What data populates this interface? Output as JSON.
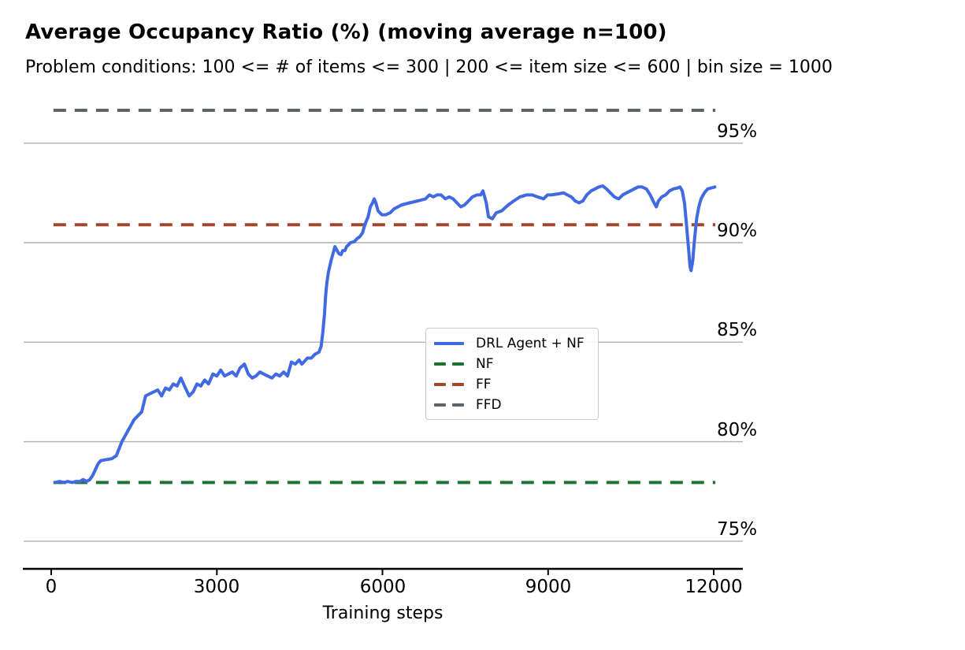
{
  "chart_data": {
    "type": "line",
    "title": "Average Occupancy Ratio (%) (moving average n=100)",
    "subtitle": "Problem conditions: 100 <= # of items <= 300 | 200 <= item size <= 600 | bin size = 1000",
    "xlabel": "Training steps",
    "ylabel": "",
    "grid": "horizontal",
    "grid_color": "#b0b0b0",
    "axis_color": "#000000",
    "legend_position": "center",
    "xlim": [
      -510,
      12530
    ],
    "ylim": [
      73.6,
      97.7
    ],
    "x_ticks": [
      {
        "label": "0",
        "value": 0
      },
      {
        "label": "3000",
        "value": 3000
      },
      {
        "label": "6000",
        "value": 6000
      },
      {
        "label": "9000",
        "value": 9000
      },
      {
        "label": "12000",
        "value": 12000
      }
    ],
    "y_ticks": [
      {
        "label": "95%",
        "value": 95
      },
      {
        "label": "90%",
        "value": 90
      },
      {
        "label": "85%",
        "value": 85
      },
      {
        "label": "80%",
        "value": 80
      },
      {
        "label": "75%",
        "value": 75
      }
    ],
    "series": [
      {
        "name": "DRL Agent + NF",
        "style": "solid",
        "color": "#4169e1",
        "points": [
          [
            70,
            77.95
          ],
          [
            150,
            78.0
          ],
          [
            230,
            77.95
          ],
          [
            300,
            78.0
          ],
          [
            380,
            77.95
          ],
          [
            450,
            78.0
          ],
          [
            520,
            78.0
          ],
          [
            580,
            78.1
          ],
          [
            640,
            78.0
          ],
          [
            700,
            78.1
          ],
          [
            750,
            78.3
          ],
          [
            800,
            78.6
          ],
          [
            850,
            78.9
          ],
          [
            900,
            79.05
          ],
          [
            1000,
            79.1
          ],
          [
            1100,
            79.15
          ],
          [
            1180,
            79.3
          ],
          [
            1280,
            80.0
          ],
          [
            1360,
            80.4
          ],
          [
            1500,
            81.1
          ],
          [
            1640,
            81.5
          ],
          [
            1710,
            82.3
          ],
          [
            1780,
            82.4
          ],
          [
            1930,
            82.6
          ],
          [
            2000,
            82.3
          ],
          [
            2070,
            82.7
          ],
          [
            2140,
            82.6
          ],
          [
            2210,
            82.9
          ],
          [
            2280,
            82.8
          ],
          [
            2350,
            83.2
          ],
          [
            2430,
            82.7
          ],
          [
            2500,
            82.3
          ],
          [
            2570,
            82.5
          ],
          [
            2640,
            82.9
          ],
          [
            2710,
            82.8
          ],
          [
            2780,
            83.1
          ],
          [
            2850,
            82.9
          ],
          [
            2930,
            83.4
          ],
          [
            3000,
            83.3
          ],
          [
            3070,
            83.6
          ],
          [
            3140,
            83.3
          ],
          [
            3210,
            83.4
          ],
          [
            3280,
            83.5
          ],
          [
            3350,
            83.3
          ],
          [
            3420,
            83.7
          ],
          [
            3500,
            83.9
          ],
          [
            3570,
            83.4
          ],
          [
            3640,
            83.2
          ],
          [
            3710,
            83.3
          ],
          [
            3780,
            83.5
          ],
          [
            3850,
            83.4
          ],
          [
            3920,
            83.3
          ],
          [
            4000,
            83.2
          ],
          [
            4070,
            83.4
          ],
          [
            4140,
            83.3
          ],
          [
            4210,
            83.5
          ],
          [
            4280,
            83.3
          ],
          [
            4350,
            84.0
          ],
          [
            4420,
            83.9
          ],
          [
            4490,
            84.1
          ],
          [
            4540,
            83.9
          ],
          [
            4640,
            84.2
          ],
          [
            4710,
            84.2
          ],
          [
            4780,
            84.4
          ],
          [
            4850,
            84.5
          ],
          [
            4890,
            84.8
          ],
          [
            4920,
            85.5
          ],
          [
            4950,
            86.4
          ],
          [
            4970,
            87.3
          ],
          [
            4990,
            87.9
          ],
          [
            5020,
            88.5
          ],
          [
            5070,
            89.1
          ],
          [
            5110,
            89.5
          ],
          [
            5140,
            89.8
          ],
          [
            5180,
            89.6
          ],
          [
            5210,
            89.45
          ],
          [
            5250,
            89.4
          ],
          [
            5280,
            89.6
          ],
          [
            5320,
            89.6
          ],
          [
            5350,
            89.8
          ],
          [
            5390,
            89.9
          ],
          [
            5420,
            90.0
          ],
          [
            5490,
            90.05
          ],
          [
            5540,
            90.2
          ],
          [
            5590,
            90.3
          ],
          [
            5640,
            90.5
          ],
          [
            5680,
            90.9
          ],
          [
            5740,
            91.3
          ],
          [
            5780,
            91.8
          ],
          [
            5820,
            92.0
          ],
          [
            5850,
            92.2
          ],
          [
            5880,
            92.0
          ],
          [
            5920,
            91.6
          ],
          [
            5990,
            91.4
          ],
          [
            6060,
            91.4
          ],
          [
            6140,
            91.5
          ],
          [
            6210,
            91.7
          ],
          [
            6350,
            91.9
          ],
          [
            6490,
            92.0
          ],
          [
            6640,
            92.1
          ],
          [
            6780,
            92.2
          ],
          [
            6850,
            92.4
          ],
          [
            6920,
            92.3
          ],
          [
            6990,
            92.4
          ],
          [
            7060,
            92.4
          ],
          [
            7140,
            92.2
          ],
          [
            7210,
            92.3
          ],
          [
            7280,
            92.2
          ],
          [
            7350,
            92.0
          ],
          [
            7420,
            91.8
          ],
          [
            7490,
            91.9
          ],
          [
            7560,
            92.1
          ],
          [
            7630,
            92.3
          ],
          [
            7710,
            92.4
          ],
          [
            7780,
            92.4
          ],
          [
            7820,
            92.6
          ],
          [
            7880,
            92.0
          ],
          [
            7920,
            91.3
          ],
          [
            7990,
            91.2
          ],
          [
            8060,
            91.5
          ],
          [
            8160,
            91.6
          ],
          [
            8280,
            91.9
          ],
          [
            8380,
            92.1
          ],
          [
            8490,
            92.3
          ],
          [
            8610,
            92.4
          ],
          [
            8710,
            92.4
          ],
          [
            8810,
            92.3
          ],
          [
            8920,
            92.2
          ],
          [
            8990,
            92.4
          ],
          [
            9060,
            92.4
          ],
          [
            9180,
            92.45
          ],
          [
            9280,
            92.5
          ],
          [
            9350,
            92.4
          ],
          [
            9420,
            92.3
          ],
          [
            9490,
            92.1
          ],
          [
            9560,
            92.0
          ],
          [
            9630,
            92.1
          ],
          [
            9700,
            92.4
          ],
          [
            9780,
            92.6
          ],
          [
            9850,
            92.7
          ],
          [
            9920,
            92.8
          ],
          [
            9990,
            92.85
          ],
          [
            10060,
            92.7
          ],
          [
            10130,
            92.5
          ],
          [
            10200,
            92.3
          ],
          [
            10280,
            92.2
          ],
          [
            10350,
            92.4
          ],
          [
            10420,
            92.5
          ],
          [
            10490,
            92.6
          ],
          [
            10560,
            92.7
          ],
          [
            10630,
            92.8
          ],
          [
            10700,
            92.8
          ],
          [
            10780,
            92.7
          ],
          [
            10850,
            92.4
          ],
          [
            10920,
            92.0
          ],
          [
            10960,
            91.8
          ],
          [
            11000,
            92.1
          ],
          [
            11060,
            92.3
          ],
          [
            11130,
            92.4
          ],
          [
            11200,
            92.6
          ],
          [
            11270,
            92.7
          ],
          [
            11350,
            92.75
          ],
          [
            11390,
            92.8
          ],
          [
            11430,
            92.6
          ],
          [
            11470,
            92.0
          ],
          [
            11500,
            91.1
          ],
          [
            11550,
            89.5
          ],
          [
            11570,
            88.8
          ],
          [
            11590,
            88.6
          ],
          [
            11620,
            89.1
          ],
          [
            11650,
            90.1
          ],
          [
            11690,
            91.2
          ],
          [
            11730,
            91.8
          ],
          [
            11770,
            92.2
          ],
          [
            11830,
            92.5
          ],
          [
            11890,
            92.7
          ],
          [
            11960,
            92.75
          ],
          [
            12020,
            92.8
          ]
        ]
      },
      {
        "name": "NF",
        "style": "dashed",
        "color": "#1d7430",
        "value": 77.95,
        "x_range": [
          40,
          12030
        ]
      },
      {
        "name": "FF",
        "style": "dashed",
        "color": "#a0462b",
        "value": 90.9,
        "x_range": [
          40,
          12030
        ]
      },
      {
        "name": "FFD",
        "style": "dashed",
        "color": "#5f646a",
        "value": 96.65,
        "x_range": [
          40,
          12030
        ]
      }
    ]
  }
}
